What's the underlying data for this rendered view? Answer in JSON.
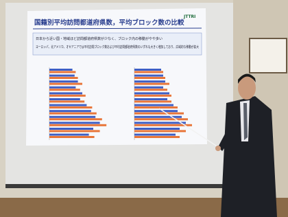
{
  "slide": {
    "title": "国籍別平均訪問都道府県数，平均ブロック数の比較",
    "logo": "JTTRI",
    "bullets": [
      "日本から近い国・地域ほど訪問都道府県数が少なく、ブロック内の移動がやや多い",
      "ヨーロッパ、北アメリカ、オセアニアでは平均訪問ブロック数および平均訪問都道府県数のいずれも大きく増加しており、広域的な移動が拡大"
    ],
    "charts": [
      {
        "series": [
          {
            "color": "#3f5fc4",
            "values": [
              2.1,
              2.3,
              2.6,
              2.4,
              3.0,
              2.8,
              3.4,
              3.8,
              4.2,
              4.6,
              4.0,
              3.6
            ]
          },
          {
            "color": "#e8763a",
            "values": [
              2.4,
              2.6,
              3.0,
              2.8,
              3.3,
              3.2,
              3.9,
              4.3,
              4.8,
              5.2,
              4.6,
              4.1
            ]
          }
        ]
      },
      {
        "series": [
          {
            "color": "#3f5fc4",
            "values": [
              1.3,
              1.4,
              1.5,
              1.4,
              1.7,
              1.6,
              1.9,
              2.1,
              2.3,
              2.5,
              2.2,
              2.0
            ]
          },
          {
            "color": "#e8763a",
            "values": [
              1.4,
              1.5,
              1.7,
              1.6,
              1.8,
              1.8,
              2.1,
              2.4,
              2.6,
              2.8,
              2.5,
              2.2
            ]
          }
        ]
      }
    ]
  }
}
